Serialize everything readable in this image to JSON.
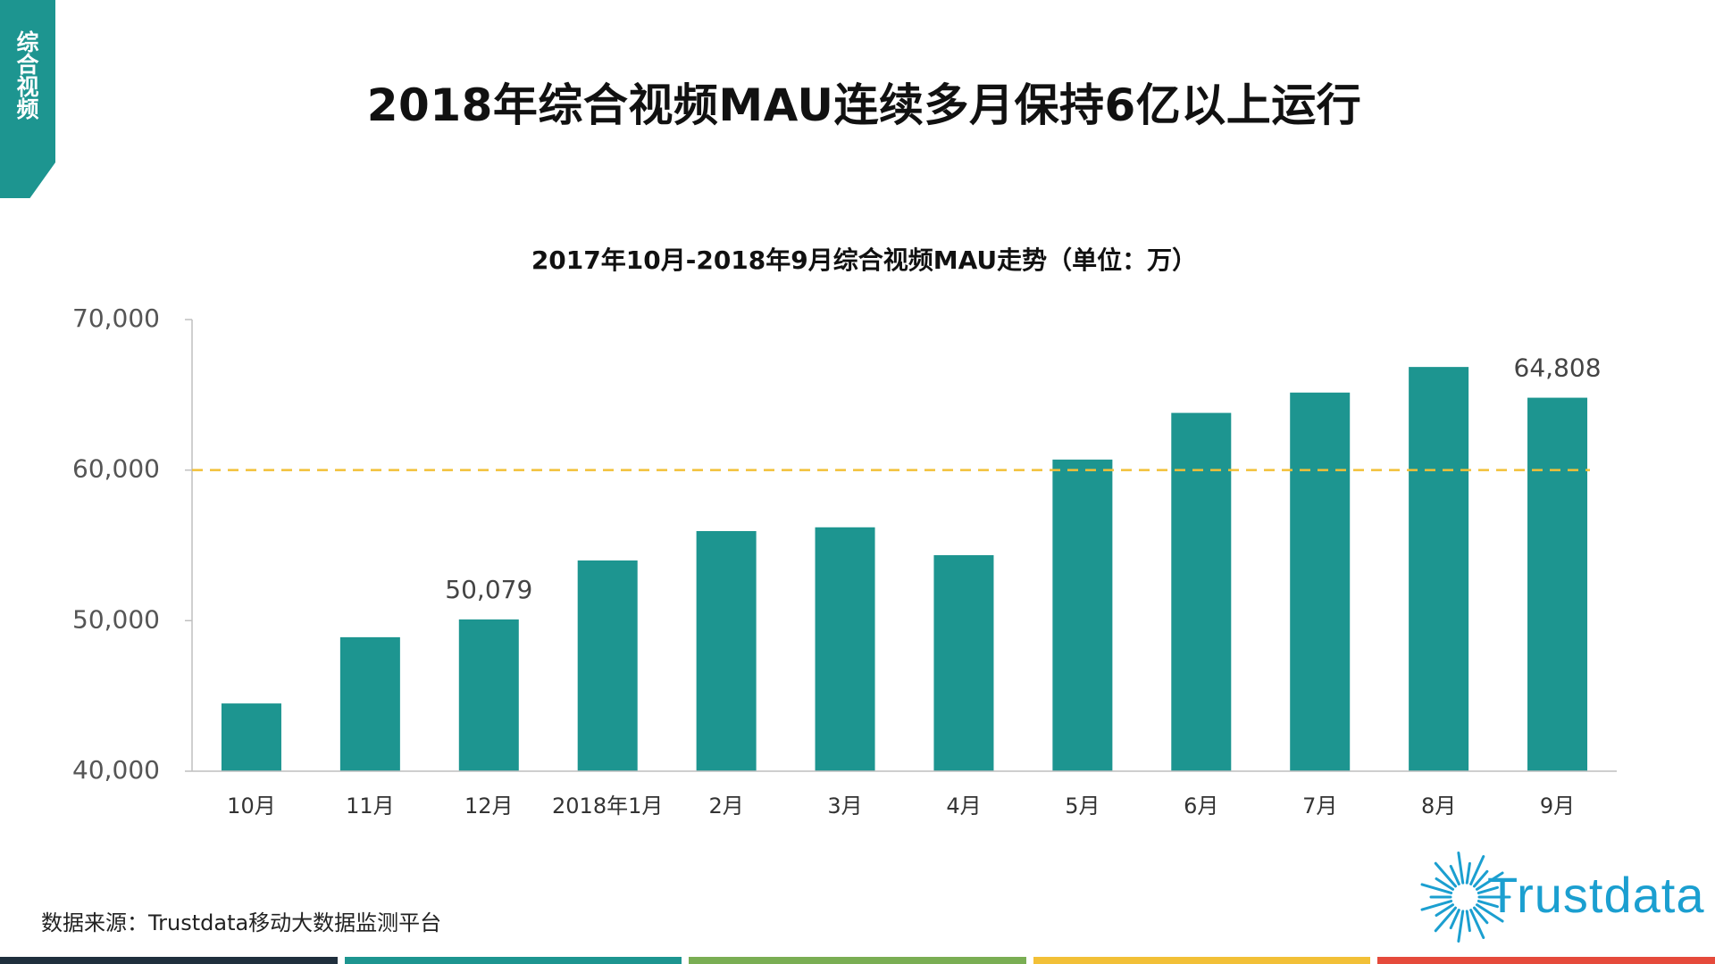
{
  "side_tab": {
    "label": "综合视频"
  },
  "page_title": "2018年综合视频MAU连续多月保持6亿以上运行",
  "source_note": "数据来源：Trustdata移动大数据监测平台",
  "logo": {
    "text": "Trustdata",
    "icon": "sunburst-icon",
    "color": "#1b9fd0"
  },
  "colors": {
    "accent": "#1d9590",
    "bar": "#1d9590",
    "reference_line": "#f2c037",
    "bottom_stripes": [
      "#1f2f3d",
      "#1d9590",
      "#7aae54",
      "#f2c037",
      "#e54a3b"
    ]
  },
  "chart_data": {
    "type": "bar",
    "title": "2017年10月-2018年9月综合视频MAU走势（单位：万）",
    "categories": [
      "10月",
      "11月",
      "12月",
      "2018年1月",
      "2月",
      "3月",
      "4月",
      "5月",
      "6月",
      "7月",
      "8月",
      "9月"
    ],
    "values": [
      44500,
      48900,
      50079,
      54000,
      55950,
      56200,
      54350,
      60700,
      63800,
      65150,
      66850,
      64808
    ],
    "data_labels": [
      {
        "category": "12月",
        "text": "50,079"
      },
      {
        "category": "9月",
        "text": "64,808"
      }
    ],
    "ylim": [
      40000,
      70000
    ],
    "yticks": [
      40000,
      50000,
      60000,
      70000
    ],
    "ytick_labels": [
      "40,000",
      "50,000",
      "60,000",
      "70,000"
    ],
    "reference_line": {
      "value": 60000,
      "style": "dashed"
    },
    "grid": false,
    "legend": "none"
  }
}
